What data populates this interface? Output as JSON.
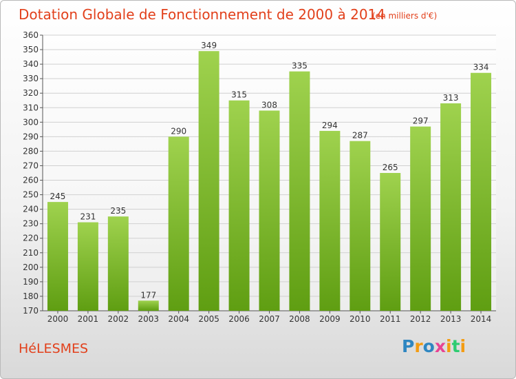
{
  "title": "Dotation Globale de Fonctionnement de 2000 à 2014",
  "subtitle": "(en milliers d'€)",
  "commune": "HéLESMES",
  "logo": "Proxiti",
  "colors": {
    "bar_top": "#9fd24e",
    "bar_bottom": "#5f9e12",
    "title": "#e2401b",
    "grid": "#d0d0d0"
  },
  "chart_data": {
    "type": "bar",
    "title": "Dotation Globale de Fonctionnement de 2000 à 2014",
    "subtitle": "(en milliers d'€)",
    "categories": [
      "2000",
      "2001",
      "2002",
      "2003",
      "2004",
      "2005",
      "2006",
      "2007",
      "2008",
      "2009",
      "2010",
      "2011",
      "2012",
      "2013",
      "2014"
    ],
    "values": [
      245,
      231,
      235,
      177,
      290,
      349,
      315,
      308,
      335,
      294,
      287,
      265,
      297,
      313,
      334
    ],
    "ylim": [
      170,
      360
    ],
    "yticks": [
      170,
      180,
      190,
      200,
      210,
      220,
      230,
      240,
      250,
      260,
      270,
      280,
      290,
      300,
      310,
      320,
      330,
      340,
      350,
      360
    ],
    "grid": true,
    "data_labels": true
  }
}
